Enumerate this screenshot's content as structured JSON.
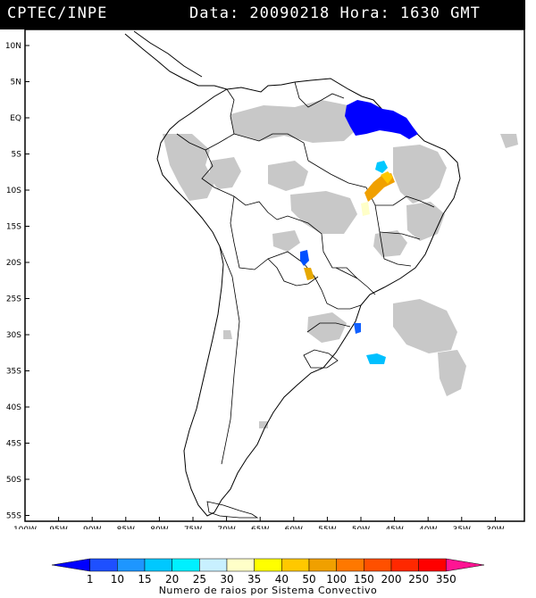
{
  "header": {
    "source": "CPTEC/INPE",
    "datetime": "Data: 20090218 Hora: 1630 GMT"
  },
  "map": {
    "region": "South America",
    "lon_range": [
      -100,
      -28
    ],
    "lat_range": [
      -56,
      13
    ],
    "lat_labels": [
      "10N",
      "5N",
      "EQ",
      "5S",
      "10S",
      "15S",
      "20S",
      "25S",
      "30S",
      "35S",
      "40S",
      "45S",
      "50S",
      "55S"
    ],
    "lon_labels": [
      "100W",
      "95W",
      "90W",
      "85W",
      "80W",
      "75W",
      "70W",
      "65W",
      "60W",
      "55W",
      "50W",
      "45W",
      "40W",
      "35W",
      "30W"
    ],
    "cloud_color": "#c8c8c8",
    "border_color": "#000000"
  },
  "lightning_clusters": [
    {
      "region": "Amazon river mouth",
      "color": "#0000ff"
    },
    {
      "region": "Maranhao",
      "color": "#00c8ff"
    },
    {
      "region": "Tocantins/Bahia",
      "color": "#f0a000"
    },
    {
      "region": "Paraguay",
      "color": "#0050ff"
    },
    {
      "region": "Paraguay south",
      "color": "#e6a800"
    },
    {
      "region": "Rio Grande do Sul",
      "color": "#1060ff"
    },
    {
      "region": "Atlantic off Uruguay",
      "color": "#00c0ff"
    }
  ],
  "colorbar": {
    "labels": [
      "1",
      "10",
      "15",
      "20",
      "25",
      "30",
      "35",
      "40",
      "50",
      "100",
      "150",
      "200",
      "250",
      "350"
    ],
    "colors": [
      "#0000ff",
      "#1e50ff",
      "#1e96ff",
      "#00c8ff",
      "#00f0ff",
      "#c8f0ff",
      "#ffffc8",
      "#ffff00",
      "#ffc800",
      "#f0a000",
      "#ff7800",
      "#ff5000",
      "#ff2800",
      "#ff0000",
      "#ff1493"
    ],
    "title": "Numero de raios por Sistema Convectivo"
  }
}
